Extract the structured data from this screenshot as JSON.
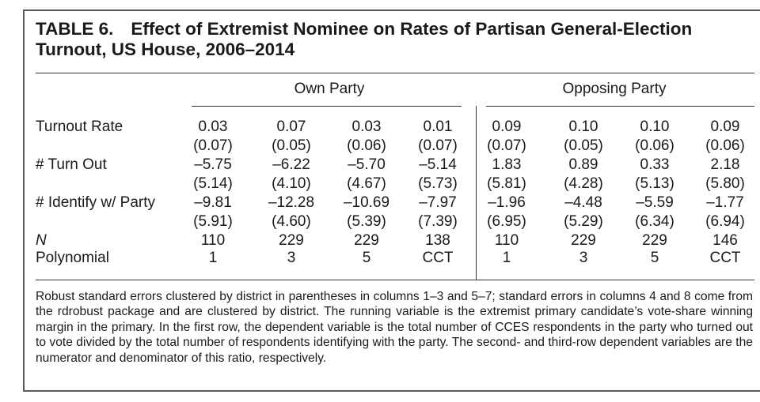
{
  "table": {
    "number": "TABLE 6.",
    "title": "Effect of Extremist Nominee on Rates of Partisan General-Election Turnout, US House, 2006–2014",
    "groups": [
      "Own Party",
      "Opposing Party"
    ],
    "rows": [
      {
        "label": "Turnout Rate",
        "values": [
          "0.03",
          "0.07",
          "0.03",
          "0.01",
          "0.09",
          "0.10",
          "0.10",
          "0.09"
        ],
        "se": [
          "(0.07)",
          "(0.05)",
          "(0.06)",
          "(0.07)",
          "(0.07)",
          "(0.05)",
          "(0.06)",
          "(0.06)"
        ]
      },
      {
        "label": "# Turn Out",
        "values": [
          "–5.75",
          "–6.22",
          "–5.70",
          "–5.14",
          "1.83",
          "0.89",
          "0.33",
          "2.18"
        ],
        "se": [
          "(5.14)",
          "(4.10)",
          "(4.67)",
          "(5.73)",
          "(5.81)",
          "(4.28)",
          "(5.13)",
          "(5.80)"
        ]
      },
      {
        "label": "# Identify w/ Party",
        "values": [
          "–9.81",
          "–12.28",
          "–10.69",
          "–7.97",
          "–1.96",
          "–4.48",
          "–5.59",
          "–1.77"
        ],
        "se": [
          "(5.91)",
          "(4.60)",
          "(5.39)",
          "(7.39)",
          "(6.95)",
          "(5.29)",
          "(6.34)",
          "(6.94)"
        ]
      },
      {
        "label": "N",
        "values": [
          "110",
          "229",
          "229",
          "138",
          "110",
          "229",
          "229",
          "146"
        ]
      },
      {
        "label": "Polynomial",
        "values": [
          "1",
          "3",
          "5",
          "CCT",
          "1",
          "3",
          "5",
          "CCT"
        ]
      }
    ],
    "note": "Robust standard errors clustered by district in parentheses in columns 1–3 and 5–7; standard errors in columns 4 and 8 come from the rdrobust package and are clustered by district. The running variable is the extremist primary candidate’s vote-share winning margin in the primary. In the first row, the dependent variable is the total number of CCES respondents in the party who turned out to vote divided by the total number of respondents identifying with the party. The second- and third-row dependent variables are the numerator and denominator of this ratio, respectively."
  }
}
